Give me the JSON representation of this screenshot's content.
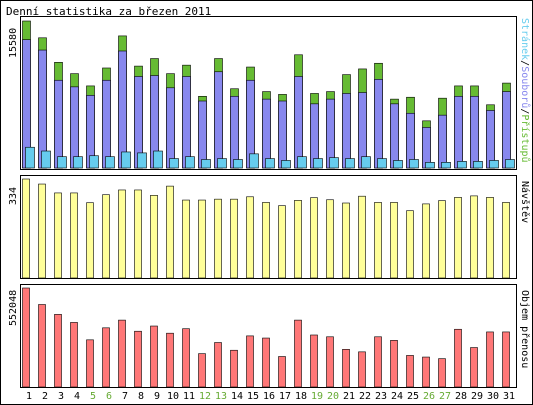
{
  "window": {
    "title": "Denní statistika za březen 2011"
  },
  "colors": {
    "pages": "#66ccee",
    "files": "#8888ee",
    "hits": "#66bb33",
    "visits": "#ffff99",
    "traffic": "#ff7777",
    "weekday_label": "#000000",
    "weekend_label": "#66aa33"
  },
  "chart_data": [
    {
      "type": "bar",
      "panel": "hits-files-pages",
      "title": "Denní statistika za březen 2011",
      "y_tick_label": "15580",
      "ylim": [
        0,
        15580
      ],
      "categories": [
        "1",
        "2",
        "3",
        "4",
        "5",
        "6",
        "7",
        "8",
        "9",
        "10",
        "11",
        "12",
        "13",
        "14",
        "15",
        "16",
        "17",
        "18",
        "19",
        "20",
        "21",
        "22",
        "23",
        "24",
        "25",
        "26",
        "27",
        "28",
        "29",
        "30",
        "31"
      ],
      "legend": [
        "Stránek",
        "Souborů",
        "Přístupů"
      ],
      "legend_placement": "right",
      "series": [
        {
          "name": "Přístupů",
          "values": [
            15580,
            13800,
            11200,
            10000,
            8700,
            10600,
            14000,
            10800,
            11600,
            10000,
            10900,
            7600,
            11600,
            8400,
            10700,
            8100,
            7800,
            12000,
            7900,
            8100,
            9900,
            10500,
            11100,
            7300,
            7500,
            5000,
            7400,
            8700,
            8700,
            6700,
            9000
          ]
        },
        {
          "name": "Souborů",
          "values": [
            13600,
            12500,
            9300,
            8600,
            7700,
            9300,
            12400,
            9700,
            9800,
            8500,
            9700,
            7100,
            10200,
            7600,
            9300,
            7300,
            7100,
            9700,
            6800,
            7300,
            7900,
            8000,
            9400,
            6800,
            5800,
            4300,
            5600,
            7600,
            7600,
            6100,
            8100
          ]
        },
        {
          "name": "Stránek",
          "values": [
            2200,
            1800,
            1200,
            1200,
            1300,
            1200,
            1700,
            1600,
            1800,
            1000,
            1200,
            900,
            1000,
            900,
            1500,
            1000,
            800,
            1200,
            1000,
            1100,
            1000,
            1200,
            1000,
            800,
            900,
            600,
            600,
            700,
            700,
            800,
            900
          ]
        }
      ]
    },
    {
      "type": "bar",
      "panel": "visits",
      "y_tick_label": "334",
      "ylim": [
        0,
        334
      ],
      "categories": [
        "1",
        "2",
        "3",
        "4",
        "5",
        "6",
        "7",
        "8",
        "9",
        "10",
        "11",
        "12",
        "13",
        "14",
        "15",
        "16",
        "17",
        "18",
        "19",
        "20",
        "21",
        "22",
        "23",
        "24",
        "25",
        "26",
        "27",
        "28",
        "29",
        "30",
        "31"
      ],
      "legend": [
        "Návštěv"
      ],
      "legend_placement": "right",
      "series": [
        {
          "name": "Návštěv",
          "values": [
            334,
            317,
            287,
            287,
            254,
            281,
            297,
            297,
            279,
            310,
            263,
            263,
            266,
            266,
            274,
            255,
            244,
            262,
            271,
            264,
            253,
            276,
            255,
            255,
            227,
            250,
            261,
            272,
            277,
            272,
            255
          ]
        }
      ]
    },
    {
      "type": "bar",
      "panel": "traffic",
      "y_tick_label": "552048",
      "ylim": [
        0,
        552048
      ],
      "categories": [
        "1",
        "2",
        "3",
        "4",
        "5",
        "6",
        "7",
        "8",
        "9",
        "10",
        "11",
        "12",
        "13",
        "14",
        "15",
        "16",
        "17",
        "18",
        "19",
        "20",
        "21",
        "22",
        "23",
        "24",
        "25",
        "26",
        "27",
        "28",
        "29",
        "30",
        "31"
      ],
      "legend": [
        "Objem přenosu"
      ],
      "legend_placement": "right",
      "series": [
        {
          "name": "Objem přenosu",
          "values": [
            552048,
            460000,
            405000,
            360000,
            263000,
            330000,
            373000,
            311000,
            340000,
            300000,
            325000,
            186000,
            248000,
            205000,
            285000,
            273000,
            170000,
            373000,
            290000,
            280000,
            210000,
            196000,
            280000,
            260000,
            176000,
            167000,
            158000,
            322000,
            220000,
            307000,
            307000
          ]
        }
      ]
    }
  ],
  "x_labels": [
    {
      "text": "1",
      "weekend": false
    },
    {
      "text": "2",
      "weekend": false
    },
    {
      "text": "3",
      "weekend": false
    },
    {
      "text": "4",
      "weekend": false
    },
    {
      "text": "5",
      "weekend": true
    },
    {
      "text": "6",
      "weekend": true
    },
    {
      "text": "7",
      "weekend": false
    },
    {
      "text": "8",
      "weekend": false
    },
    {
      "text": "9",
      "weekend": false
    },
    {
      "text": "10",
      "weekend": false
    },
    {
      "text": "11",
      "weekend": false
    },
    {
      "text": "12",
      "weekend": true
    },
    {
      "text": "13",
      "weekend": true
    },
    {
      "text": "14",
      "weekend": false
    },
    {
      "text": "15",
      "weekend": false
    },
    {
      "text": "16",
      "weekend": false
    },
    {
      "text": "17",
      "weekend": false
    },
    {
      "text": "18",
      "weekend": false
    },
    {
      "text": "19",
      "weekend": true
    },
    {
      "text": "20",
      "weekend": true
    },
    {
      "text": "21",
      "weekend": false
    },
    {
      "text": "22",
      "weekend": false
    },
    {
      "text": "23",
      "weekend": false
    },
    {
      "text": "24",
      "weekend": false
    },
    {
      "text": "25",
      "weekend": false
    },
    {
      "text": "26",
      "weekend": true
    },
    {
      "text": "27",
      "weekend": true
    },
    {
      "text": "28",
      "weekend": false
    },
    {
      "text": "29",
      "weekend": false
    },
    {
      "text": "30",
      "weekend": false
    },
    {
      "text": "31",
      "weekend": false
    }
  ]
}
